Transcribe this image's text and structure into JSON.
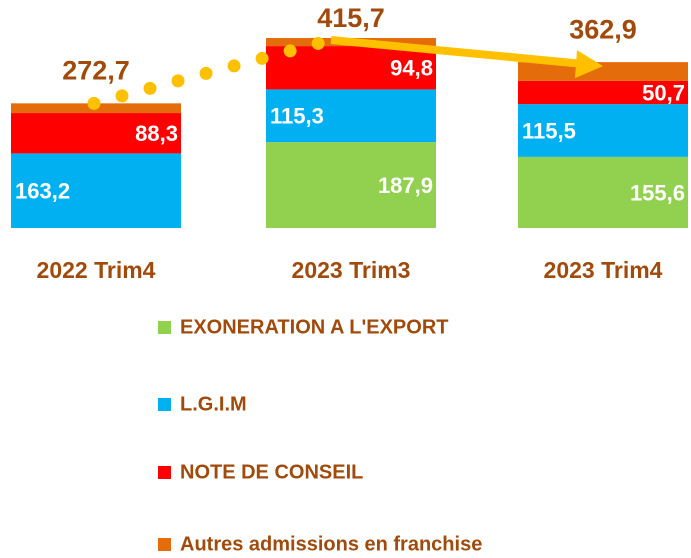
{
  "chart_data": {
    "type": "stacked_bar",
    "categories": [
      "2022 Trim4",
      "2023 Trim3",
      "2023 Trim4"
    ],
    "series": [
      {
        "name": "EXONERATION A L'EXPORT",
        "color": "#92d050",
        "values": [
          null,
          187.9,
          155.6
        ],
        "value_labels": [
          null,
          "187,9",
          "155,6"
        ]
      },
      {
        "name": "L.G.I.M",
        "color": "#00b0f0",
        "values": [
          163.2,
          115.3,
          115.5
        ],
        "value_labels": [
          "163,2",
          "115,3",
          "115,5"
        ]
      },
      {
        "name": "NOTE DE CONSEIL",
        "color": "#ff0000",
        "values": [
          88.3,
          94.8,
          50.7
        ],
        "value_labels": [
          "88,3",
          "94,8",
          "50,7"
        ]
      },
      {
        "name": "Autres admissions en franchise",
        "color": "#e46c0a",
        "values": [
          21.2,
          17.7,
          41.1
        ]
      }
    ],
    "totals": {
      "values": [
        272.7,
        415.7,
        362.9
      ],
      "value_labels": [
        "272,7",
        "415,7",
        "362,9"
      ]
    }
  }
}
